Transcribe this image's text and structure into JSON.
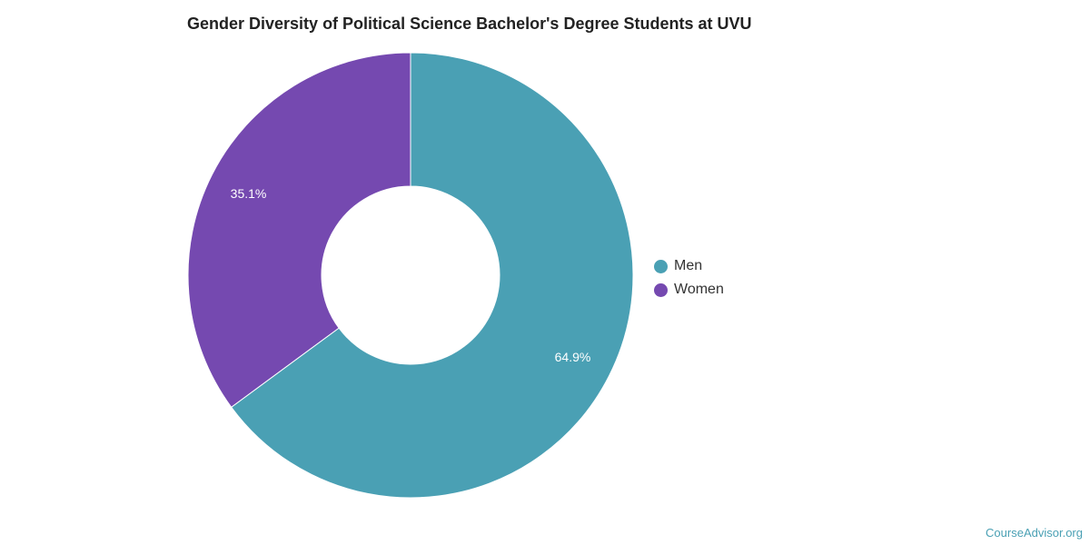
{
  "chart_data": {
    "type": "pie",
    "title": "Gender Diversity of Political Science Bachelor's Degree Students at UVU",
    "donut": true,
    "categories": [
      "Men",
      "Women"
    ],
    "values": [
      64.9,
      35.1
    ],
    "data_labels": [
      "64.9%",
      "35.1%"
    ],
    "colors": [
      "#4aa0b4",
      "#7549b0"
    ],
    "legend_position": "right"
  },
  "watermark": "CourseAdvisor.org"
}
